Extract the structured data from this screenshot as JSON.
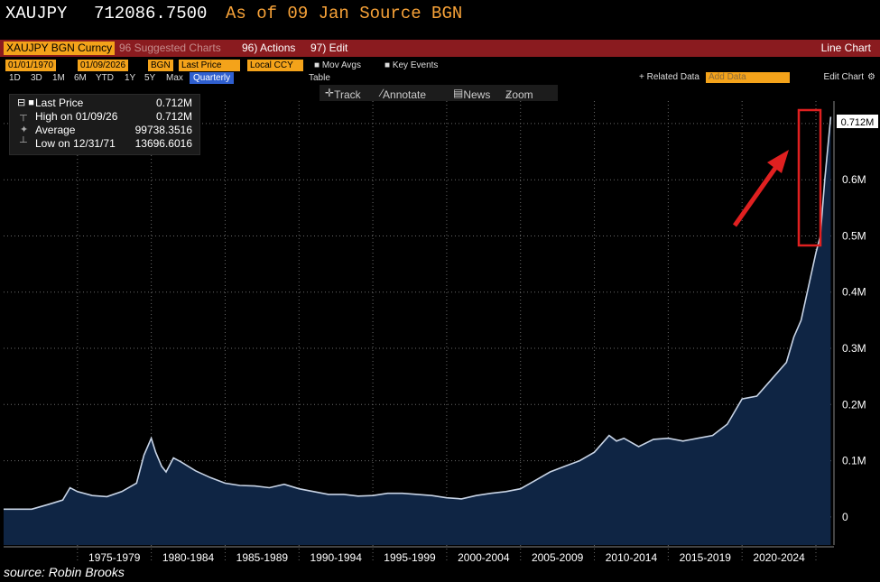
{
  "header": {
    "ticker": "XAUJPY",
    "price": "712086.7500",
    "as_of": "As of 09 Jan Source BGN"
  },
  "toolbar": {
    "ticker_field": "XAUJPY BGN Curncy",
    "suggested": "96 Suggested Charts",
    "actions": "96) Actions",
    "edit": "97) Edit",
    "chart_type": "Line Chart"
  },
  "controls": {
    "start_date": "01/01/1970",
    "end_date": "01/09/2026",
    "source": "BGN",
    "field": "Last Price",
    "currency": "Local CCY",
    "mov_avgs": "Mov Avgs",
    "key_events": "Key Events",
    "periods": [
      "1D",
      "3D",
      "1M",
      "6M",
      "YTD",
      "1Y",
      "5Y",
      "Max"
    ],
    "frequency": "Quarterly",
    "table": "Table",
    "related_data": "+ Related Data",
    "add_data": "Add Data",
    "edit_chart": "Edit Chart"
  },
  "chart_tools": {
    "track": "Track",
    "annotate": "Annotate",
    "news": "News",
    "zoom": "Zoom"
  },
  "legend": {
    "rows": [
      {
        "name": "Last Price",
        "value": "0.712M"
      },
      {
        "name": "High on 01/09/26",
        "value": "0.712M"
      },
      {
        "name": "Average",
        "value": "99738.3516"
      },
      {
        "name": "Low on 12/31/71",
        "value": "13696.6016"
      }
    ]
  },
  "source_note": "source: Robin Brooks",
  "colors": {
    "accent": "#f4a31a",
    "area_fill": "#0f2544",
    "line": "#c8d4e6",
    "highlight": "#e02020",
    "toolbar": "#8a1b1f"
  },
  "chart_data": {
    "type": "area",
    "last_value_label": "0.712M",
    "ylim": [
      -50000,
      740000
    ],
    "xlim": [
      1970,
      2026.1
    ],
    "ytick_values": [
      0,
      100000,
      200000,
      300000,
      400000,
      500000,
      600000,
      700000
    ],
    "ytick_labels": [
      "0",
      "0.1M",
      "0.2M",
      "0.3M",
      "0.4M",
      "0.5M",
      "0.6M",
      "0.7M"
    ],
    "xtick_labels": [
      "1975-1979",
      "1980-1984",
      "1985-1989",
      "1990-1994",
      "1995-1999",
      "2000-2004",
      "2005-2009",
      "2010-2014",
      "2015-2019",
      "2020-2024"
    ],
    "xtick_ranges": [
      [
        1975,
        1980
      ],
      [
        1980,
        1985
      ],
      [
        1985,
        1990
      ],
      [
        1990,
        1995
      ],
      [
        1995,
        2000
      ],
      [
        2000,
        2005
      ],
      [
        2005,
        2010
      ],
      [
        2010,
        2015
      ],
      [
        2015,
        2020
      ],
      [
        2020,
        2025
      ]
    ],
    "grid": true,
    "series": [
      {
        "x": [
          1970.0,
          1971.0,
          1971.9,
          1973.0,
          1974.0,
          1974.5,
          1975.0,
          1976.0,
          1977.0,
          1978.0,
          1979.0,
          1979.5,
          1980.0,
          1980.3,
          1980.7,
          1981.0,
          1981.5,
          1982.0,
          1982.5,
          1983.0,
          1984.0,
          1985.0,
          1986.0,
          1987.0,
          1988.0,
          1989.0,
          1990.0,
          1991.0,
          1992.0,
          1993.0,
          1994.0,
          1995.0,
          1996.0,
          1997.0,
          1998.0,
          1999.0,
          2000.0,
          2001.0,
          2002.0,
          2003.0,
          2004.0,
          2005.0,
          2006.0,
          2007.0,
          2008.0,
          2009.0,
          2010.0,
          2011.0,
          2011.5,
          2012.0,
          2013.0,
          2014.0,
          2015.0,
          2016.0,
          2017.0,
          2018.0,
          2019.0,
          2020.0,
          2021.0,
          2022.0,
          2023.0,
          2023.5,
          2024.0,
          2024.5,
          2025.0,
          2025.3,
          2025.6,
          2026.0
        ],
        "y": [
          13700,
          13700,
          13696,
          22000,
          30000,
          52000,
          45000,
          38000,
          36000,
          45000,
          60000,
          110000,
          140000,
          115000,
          90000,
          80000,
          105000,
          98000,
          90000,
          82000,
          70000,
          60000,
          56000,
          55000,
          52000,
          58000,
          50000,
          45000,
          40000,
          40000,
          37000,
          38000,
          42000,
          42000,
          40000,
          38000,
          34000,
          32000,
          38000,
          42000,
          45000,
          50000,
          65000,
          80000,
          90000,
          100000,
          115000,
          145000,
          135000,
          140000,
          125000,
          138000,
          140000,
          135000,
          140000,
          145000,
          165000,
          210000,
          215000,
          245000,
          275000,
          320000,
          350000,
          410000,
          470000,
          500000,
          600000,
          712086
        ]
      }
    ]
  }
}
